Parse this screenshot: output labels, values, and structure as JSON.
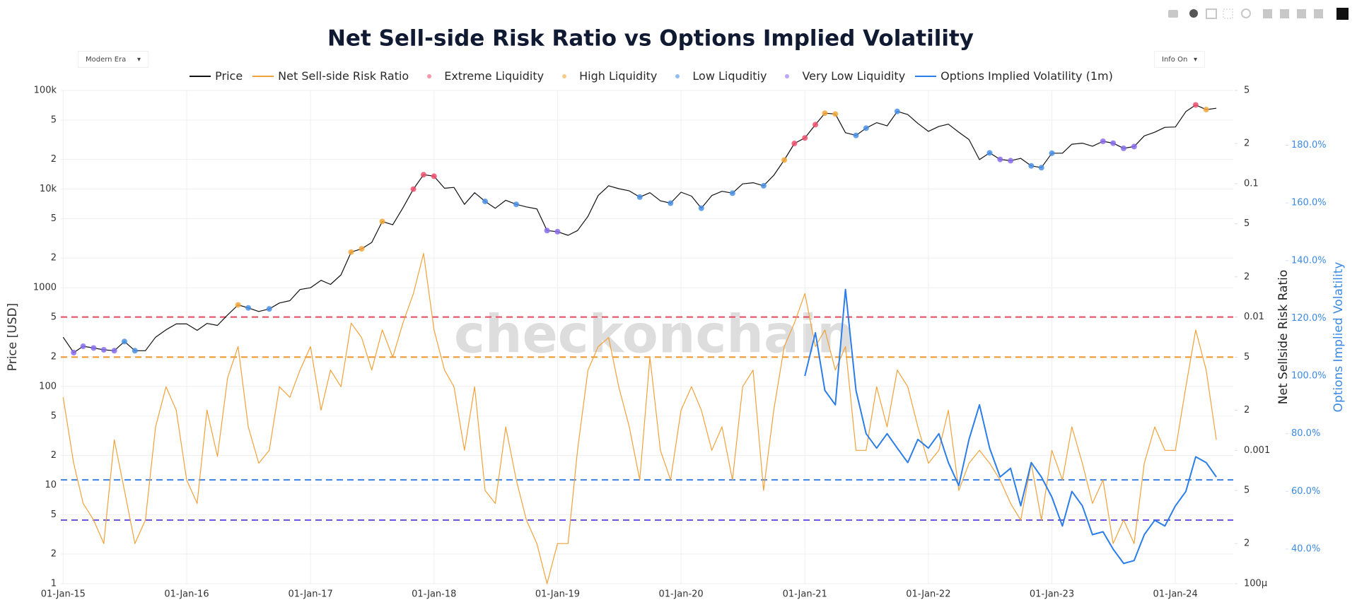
{
  "chart_data": {
    "type": "line",
    "title": "Net Sell-side Risk Ratio vs Options Implied Volatility",
    "watermark": "checkonchain",
    "controls": {
      "era": "Modern Era",
      "info": "Info On"
    },
    "y_title": "Price [USD]",
    "y2_title": "Net Sellside Risk Ratio",
    "y3_title": "Options Implied Volatility",
    "grid": true,
    "ylog": true,
    "y2log": true,
    "xlim": [
      "2014-12-25",
      "2024-06-20"
    ],
    "ylim": [
      1,
      100000
    ],
    "y2lim": [
      0.0001,
      0.5
    ],
    "y3lim": [
      28,
      199
    ],
    "xticks": [
      {
        "value": "2015-01-01",
        "label": "01-Jan-15"
      },
      {
        "value": "2016-01-01",
        "label": "01-Jan-16"
      },
      {
        "value": "2017-01-01",
        "label": "01-Jan-17"
      },
      {
        "value": "2018-01-01",
        "label": "01-Jan-18"
      },
      {
        "value": "2019-01-01",
        "label": "01-Jan-19"
      },
      {
        "value": "2020-01-01",
        "label": "01-Jan-20"
      },
      {
        "value": "2021-01-01",
        "label": "01-Jan-21"
      },
      {
        "value": "2022-01-01",
        "label": "01-Jan-22"
      },
      {
        "value": "2023-01-01",
        "label": "01-Jan-23"
      },
      {
        "value": "2024-01-01",
        "label": "01-Jan-24"
      }
    ],
    "yticks": [
      1,
      2,
      5,
      10,
      {
        "value": 20,
        "label": "2"
      },
      {
        "value": 50,
        "label": "5"
      },
      100,
      {
        "value": 200,
        "label": "2"
      },
      {
        "value": 500,
        "label": "5"
      },
      1000,
      {
        "value": 2000,
        "label": "2"
      },
      {
        "value": 5000,
        "label": "5"
      },
      {
        "value": 10000,
        "label": "10k"
      },
      {
        "value": 20000,
        "label": "2"
      },
      {
        "value": 50000,
        "label": "5"
      },
      {
        "value": 100000,
        "label": "100k"
      }
    ],
    "y2ticks": [
      {
        "value": 0.0001,
        "label": "100μ"
      },
      {
        "value": 0.0002,
        "label": "2"
      },
      {
        "value": 0.0005,
        "label": "5"
      },
      0.001,
      {
        "value": 0.002,
        "label": "2"
      },
      {
        "value": 0.005,
        "label": "5"
      },
      0.01,
      {
        "value": 0.02,
        "label": "2"
      },
      {
        "value": 0.05,
        "label": "5"
      },
      0.1,
      {
        "value": 0.2,
        "label": "2"
      },
      {
        "value": 0.5,
        "label": "5"
      }
    ],
    "y3ticks": [
      {
        "value": 40,
        "label": "40.0%"
      },
      {
        "value": 60,
        "label": "60.0%"
      },
      {
        "value": 80,
        "label": "80.0%"
      },
      {
        "value": 100,
        "label": "100.0%"
      },
      {
        "value": 120,
        "label": "120.0%"
      },
      {
        "value": 140,
        "label": "140.0%"
      },
      {
        "value": 160,
        "label": "160.0%"
      },
      {
        "value": 180,
        "label": "180.0%"
      }
    ],
    "levels": [
      {
        "value": 0.01,
        "color": "#e8485e"
      },
      {
        "value": 0.005,
        "color": "#f0962a"
      },
      {
        "value": 0.0006,
        "color": "#3b82e8"
      },
      {
        "value": 0.0003,
        "color": "#6a55e0"
      }
    ],
    "x": [
      "2015-01-01",
      "2015-02-01",
      "2015-03-01",
      "2015-04-01",
      "2015-05-01",
      "2015-06-01",
      "2015-07-01",
      "2015-08-01",
      "2015-09-01",
      "2015-10-01",
      "2015-11-01",
      "2015-12-01",
      "2016-01-01",
      "2016-02-01",
      "2016-03-01",
      "2016-04-01",
      "2016-05-01",
      "2016-06-01",
      "2016-07-01",
      "2016-08-01",
      "2016-09-01",
      "2016-10-01",
      "2016-11-01",
      "2016-12-01",
      "2017-01-01",
      "2017-02-01",
      "2017-03-01",
      "2017-04-01",
      "2017-05-01",
      "2017-06-01",
      "2017-07-01",
      "2017-08-01",
      "2017-09-01",
      "2017-10-01",
      "2017-11-01",
      "2017-12-01",
      "2018-01-01",
      "2018-02-01",
      "2018-03-01",
      "2018-04-01",
      "2018-05-01",
      "2018-06-01",
      "2018-07-01",
      "2018-08-01",
      "2018-09-01",
      "2018-10-01",
      "2018-11-01",
      "2018-12-01",
      "2019-01-01",
      "2019-02-01",
      "2019-03-01",
      "2019-04-01",
      "2019-05-01",
      "2019-06-01",
      "2019-07-01",
      "2019-08-01",
      "2019-09-01",
      "2019-10-01",
      "2019-11-01",
      "2019-12-01",
      "2020-01-01",
      "2020-02-01",
      "2020-03-01",
      "2020-04-01",
      "2020-05-01",
      "2020-06-01",
      "2020-07-01",
      "2020-08-01",
      "2020-09-01",
      "2020-10-01",
      "2020-11-01",
      "2020-12-01",
      "2021-01-01",
      "2021-02-01",
      "2021-03-01",
      "2021-04-01",
      "2021-05-01",
      "2021-06-01",
      "2021-07-01",
      "2021-08-01",
      "2021-09-01",
      "2021-10-01",
      "2021-11-01",
      "2021-12-01",
      "2022-01-01",
      "2022-02-01",
      "2022-03-01",
      "2022-04-01",
      "2022-05-01",
      "2022-06-01",
      "2022-07-01",
      "2022-08-01",
      "2022-09-01",
      "2022-10-01",
      "2022-11-01",
      "2022-12-01",
      "2023-01-01",
      "2023-02-01",
      "2023-03-01",
      "2023-04-01",
      "2023-05-01",
      "2023-06-01",
      "2023-07-01",
      "2023-08-01",
      "2023-09-01",
      "2023-10-01",
      "2023-11-01",
      "2023-12-01",
      "2024-01-01",
      "2024-02-01",
      "2024-03-01",
      "2024-04-01",
      "2024-05-01"
    ],
    "series": [
      {
        "name": "Price",
        "color": "#111111",
        "axis": "y",
        "mode": "line",
        "width": 1.2,
        "values": [
          315,
          220,
          255,
          245,
          235,
          230,
          285,
          230,
          230,
          315,
          375,
          430,
          430,
          370,
          435,
          415,
          530,
          670,
          625,
          575,
          610,
          700,
          740,
          960,
          1000,
          1190,
          1080,
          1350,
          2300,
          2480,
          2880,
          4700,
          4350,
          6450,
          10000,
          14000,
          13500,
          10200,
          10400,
          7000,
          9200,
          7500,
          6400,
          7700,
          7000,
          6600,
          6300,
          3800,
          3700,
          3400,
          3800,
          5300,
          8600,
          10800,
          10100,
          9600,
          8300,
          9200,
          7600,
          7200,
          9300,
          8500,
          6400,
          8600,
          9500,
          9100,
          11300,
          11600,
          10800,
          13800,
          19700,
          29000,
          33000,
          45000,
          58800,
          57700,
          37300,
          35000,
          41500,
          47100,
          43800,
          61300,
          57000,
          46300,
          38500,
          43200,
          45500,
          37700,
          31800,
          19900,
          23300,
          20000,
          19400,
          20500,
          17200,
          16500,
          23100,
          23100,
          28500,
          29200,
          27200,
          30500,
          29200,
          25900,
          27000,
          34600,
          37700,
          42300,
          42600,
          61100,
          71300,
          64000,
          66000
        ]
      },
      {
        "name": "Net Sell-side Risk Ratio",
        "color": "#f0a23a",
        "axis": "y2",
        "mode": "line",
        "width": 1.2,
        "values": [
          0.0025,
          0.0008,
          0.0004,
          0.0003,
          0.0002,
          0.0012,
          0.0005,
          0.0002,
          0.0003,
          0.0015,
          0.003,
          0.002,
          0.0006,
          0.0004,
          0.002,
          0.0009,
          0.0035,
          0.006,
          0.0015,
          0.0008,
          0.001,
          0.003,
          0.0025,
          0.004,
          0.006,
          0.002,
          0.004,
          0.003,
          0.009,
          0.007,
          0.004,
          0.008,
          0.005,
          0.009,
          0.015,
          0.03,
          0.008,
          0.004,
          0.003,
          0.001,
          0.003,
          0.0005,
          0.0004,
          0.0015,
          0.0006,
          0.0003,
          0.0002,
          0.0001,
          0.0002,
          0.0002,
          0.001,
          0.004,
          0.006,
          0.007,
          0.003,
          0.0015,
          0.0006,
          0.005,
          0.001,
          0.0006,
          0.002,
          0.003,
          0.002,
          0.001,
          0.0015,
          0.0006,
          0.003,
          0.004,
          0.0005,
          0.002,
          0.006,
          0.009,
          0.015,
          0.006,
          0.008,
          0.004,
          0.006,
          0.001,
          0.001,
          0.003,
          0.0015,
          0.004,
          0.003,
          0.0015,
          0.0008,
          0.001,
          0.002,
          0.0005,
          0.0008,
          0.001,
          0.0008,
          0.0006,
          0.0004,
          0.0003,
          0.0008,
          0.0003,
          0.001,
          0.0006,
          0.0015,
          0.0008,
          0.0004,
          0.0006,
          0.0002,
          0.0003,
          0.0002,
          0.0008,
          0.0015,
          0.001,
          0.001,
          0.003,
          0.008,
          0.004,
          0.0012
        ]
      },
      {
        "name": "Extreme Liquidity",
        "color": "#f0506e",
        "axis": "y",
        "mode": "markers",
        "x": [
          "2017-11-01",
          "2017-12-01",
          "2018-01-01",
          "2020-12-01",
          "2021-01-01",
          "2021-02-01",
          "2024-03-01"
        ],
        "values": [
          10000,
          14000,
          13500,
          29000,
          33000,
          45000,
          71300
        ]
      },
      {
        "name": "High Liquidity",
        "color": "#f4a73c",
        "axis": "y",
        "mode": "markers",
        "x": [
          "2016-06-01",
          "2017-05-01",
          "2017-06-01",
          "2017-08-01",
          "2020-11-01",
          "2021-03-01",
          "2021-04-01",
          "2024-04-01"
        ],
        "values": [
          670,
          2300,
          2480,
          4700,
          19700,
          58800,
          57700,
          64000
        ]
      },
      {
        "name": "Low Liquditiy",
        "color": "#4a90e8",
        "axis": "y",
        "mode": "markers",
        "x": [
          "2015-07-01",
          "2015-08-01",
          "2016-07-01",
          "2016-09-01",
          "2018-06-01",
          "2018-09-01",
          "2019-09-01",
          "2019-12-01",
          "2020-03-01",
          "2020-06-01",
          "2020-09-01",
          "2021-06-01",
          "2021-07-01",
          "2021-10-01",
          "2022-07-01",
          "2022-11-01",
          "2022-12-01",
          "2023-01-01"
        ],
        "values": [
          285,
          230,
          625,
          610,
          7500,
          7000,
          8300,
          7200,
          6400,
          9100,
          10800,
          35000,
          41500,
          61300,
          23300,
          17200,
          16500,
          23100
        ]
      },
      {
        "name": "Very Low Liquidity",
        "color": "#8a6cf0",
        "axis": "y",
        "mode": "markers",
        "x": [
          "2015-02-01",
          "2015-03-01",
          "2015-04-01",
          "2015-05-01",
          "2015-06-01",
          "2018-12-01",
          "2019-01-01",
          "2022-08-01",
          "2022-09-01",
          "2023-06-01",
          "2023-07-01",
          "2023-08-01",
          "2023-09-01"
        ],
        "values": [
          220,
          255,
          245,
          235,
          230,
          3800,
          3700,
          20000,
          19400,
          30500,
          29200,
          25900,
          27000
        ]
      },
      {
        "name": "Options Implied Volatility (1m)",
        "color": "#2b7de9",
        "axis": "y3",
        "mode": "line",
        "width": 2,
        "x": [
          "2021-01-01",
          "2021-02-01",
          "2021-03-01",
          "2021-04-01",
          "2021-05-01",
          "2021-06-01",
          "2021-07-01",
          "2021-08-01",
          "2021-09-01",
          "2021-10-01",
          "2021-11-01",
          "2021-12-01",
          "2022-01-01",
          "2022-02-01",
          "2022-03-01",
          "2022-04-01",
          "2022-05-01",
          "2022-06-01",
          "2022-07-01",
          "2022-08-01",
          "2022-09-01",
          "2022-10-01",
          "2022-11-01",
          "2022-12-01",
          "2023-01-01",
          "2023-02-01",
          "2023-03-01",
          "2023-04-01",
          "2023-05-01",
          "2023-06-01",
          "2023-07-01",
          "2023-08-01",
          "2023-09-01",
          "2023-10-01",
          "2023-11-01",
          "2023-12-01",
          "2024-01-01",
          "2024-02-01",
          "2024-03-01",
          "2024-04-01",
          "2024-05-01"
        ],
        "values": [
          100,
          115,
          95,
          90,
          130,
          95,
          80,
          75,
          80,
          75,
          70,
          78,
          75,
          80,
          70,
          62,
          78,
          90,
          75,
          65,
          68,
          55,
          70,
          65,
          58,
          48,
          60,
          55,
          45,
          46,
          40,
          35,
          36,
          45,
          50,
          48,
          55,
          60,
          72,
          70,
          65
        ]
      }
    ]
  }
}
